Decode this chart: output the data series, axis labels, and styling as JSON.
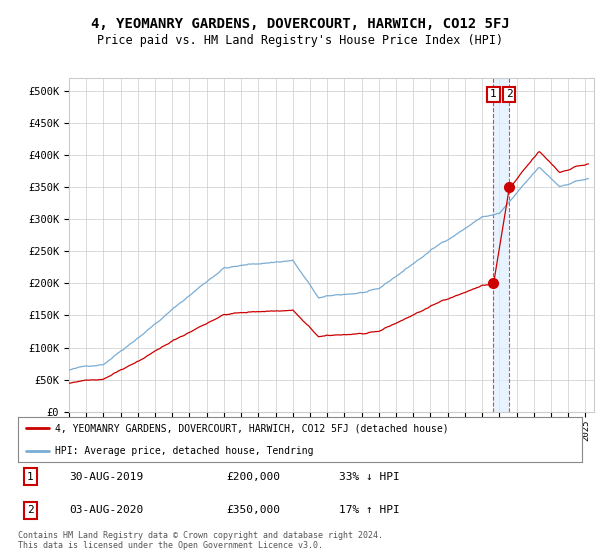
{
  "title": "4, YEOMANRY GARDENS, DOVERCOURT, HARWICH, CO12 5FJ",
  "subtitle": "Price paid vs. HM Land Registry's House Price Index (HPI)",
  "yticks": [
    0,
    50000,
    100000,
    150000,
    200000,
    250000,
    300000,
    350000,
    400000,
    450000,
    500000
  ],
  "ytick_labels": [
    "£0",
    "£50K",
    "£100K",
    "£150K",
    "£200K",
    "£250K",
    "£300K",
    "£350K",
    "£400K",
    "£450K",
    "£500K"
  ],
  "xlim_start": 1995.0,
  "xlim_end": 2025.5,
  "ylim": [
    0,
    520000
  ],
  "hpi_color": "#7aadd4",
  "price_color": "#cc0000",
  "shade_color": "#ddeeff",
  "sale1_date": 2019.66,
  "sale1_price": 200000,
  "sale1_label": "1",
  "sale2_date": 2020.58,
  "sale2_price": 350000,
  "sale2_label": "2",
  "legend_line1": "4, YEOMANRY GARDENS, DOVERCOURT, HARWICH, CO12 5FJ (detached house)",
  "legend_line2": "HPI: Average price, detached house, Tendring",
  "table_row1_num": "1",
  "table_row1_date": "30-AUG-2019",
  "table_row1_price": "£200,000",
  "table_row1_hpi": "33% ↓ HPI",
  "table_row2_num": "2",
  "table_row2_date": "03-AUG-2020",
  "table_row2_price": "£350,000",
  "table_row2_hpi": "17% ↑ HPI",
  "footnote": "Contains HM Land Registry data © Crown copyright and database right 2024.\nThis data is licensed under the Open Government Licence v3.0.",
  "bg_color": "#ffffff",
  "grid_color": "#cccccc"
}
